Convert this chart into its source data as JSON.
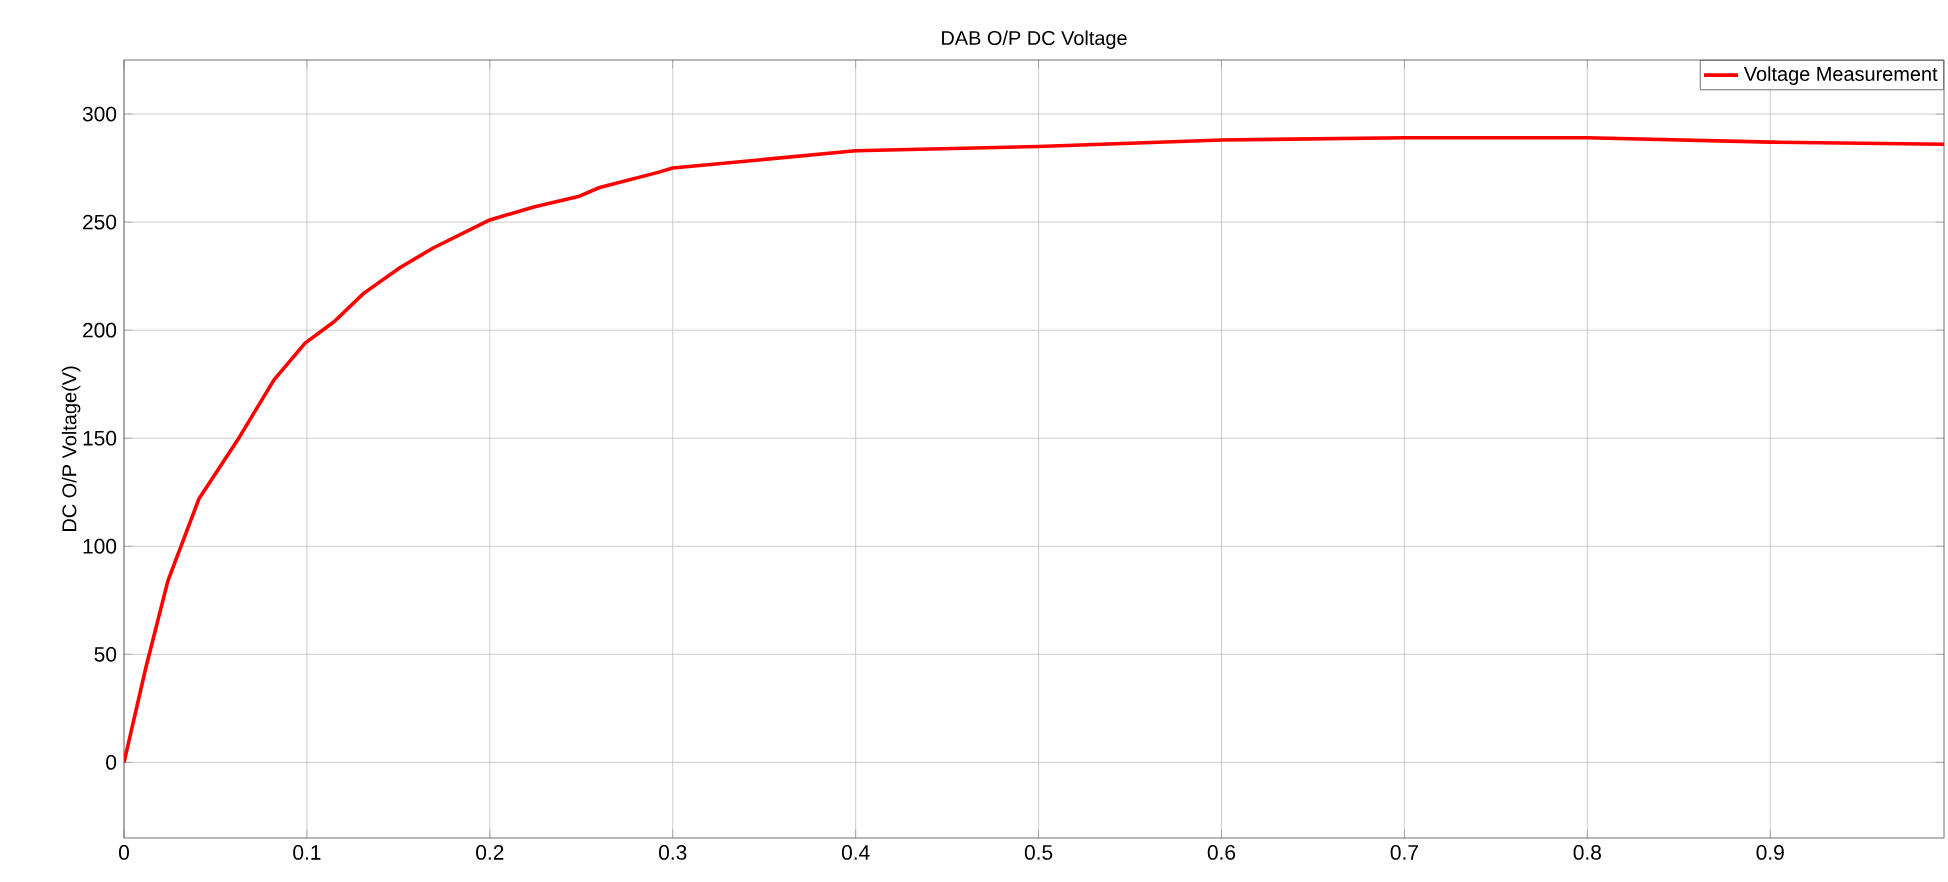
{
  "chart_data": {
    "type": "line",
    "title": "DAB O/P DC Voltage",
    "ylabel": "DC O/P Voltage(V)",
    "xlim": [
      0,
      0.995
    ],
    "ylim": [
      -35,
      325
    ],
    "xticks": [
      0,
      0.1,
      0.2,
      0.3,
      0.4,
      0.5,
      0.6,
      0.7,
      0.8,
      0.9
    ],
    "yticks": [
      0,
      50,
      100,
      150,
      200,
      250,
      300
    ],
    "grid": true,
    "legend": "top right",
    "marker": "none",
    "line_style": "solid",
    "series": [
      {
        "name": "Voltage Measurement",
        "color": "#ff0000",
        "x": [
          0,
          0.012,
          0.024,
          0.041,
          0.062,
          0.082,
          0.099,
          0.115,
          0.131,
          0.151,
          0.169,
          0.2,
          0.224,
          0.249,
          0.26,
          0.292,
          0.3,
          0.4,
          0.5,
          0.6,
          0.7,
          0.8,
          0.9,
          0.995
        ],
        "values": [
          0,
          44,
          84,
          122,
          149,
          177,
          194,
          204,
          217,
          229,
          238,
          251,
          257,
          262,
          266,
          273,
          275,
          283,
          285,
          288,
          289,
          289,
          287,
          286
        ]
      }
    ]
  }
}
